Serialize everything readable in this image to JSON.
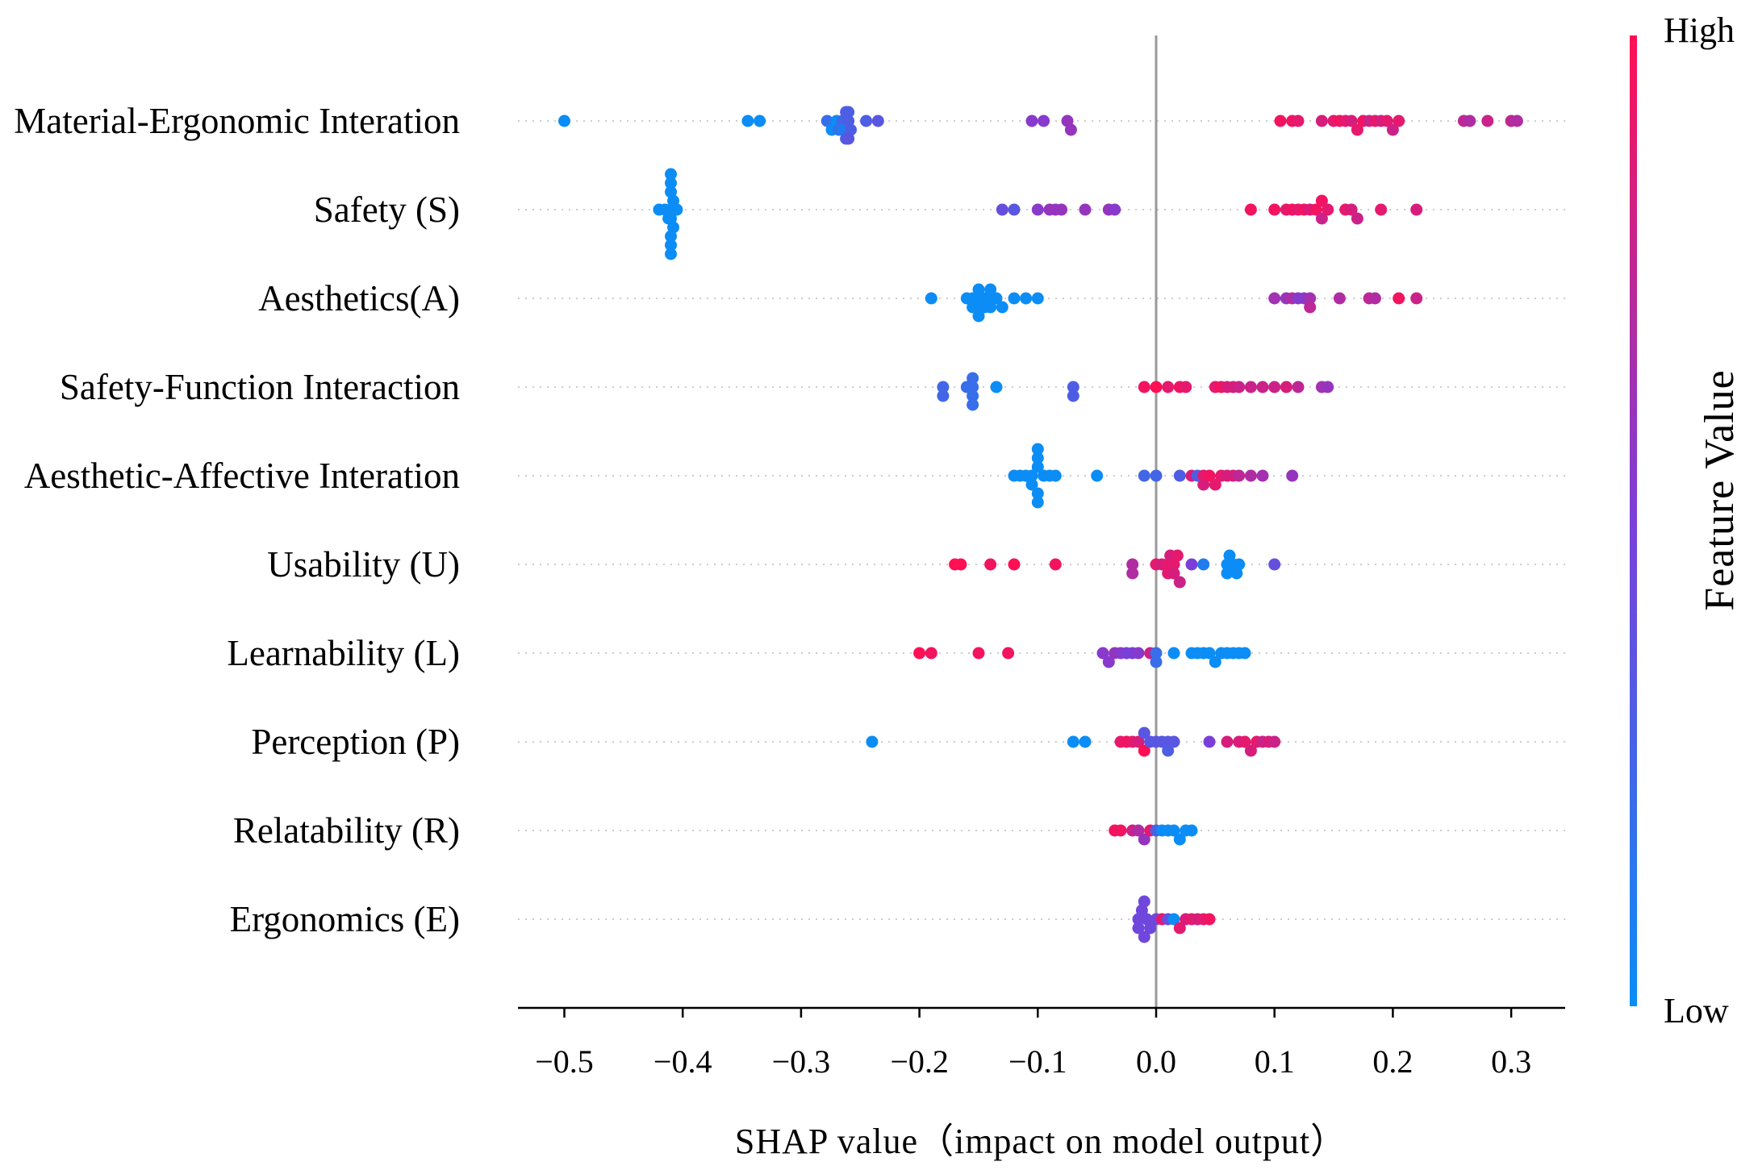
{
  "chart_data": {
    "type": "scatter",
    "subtype": "shap_beeswarm",
    "title": "",
    "xlabel": "SHAP value（impact on model output）",
    "xlim": [
      -0.55,
      0.34
    ],
    "xticks": [
      -0.5,
      -0.4,
      -0.3,
      -0.2,
      -0.1,
      0.0,
      0.1,
      0.2,
      0.3
    ],
    "xtick_labels": [
      "−0.5",
      "−0.4",
      "−0.3",
      "−0.2",
      "−0.1",
      "0.0",
      "0.1",
      "0.2",
      "0.3"
    ],
    "colorbar": {
      "label": "Feature Value",
      "high_label": "High",
      "low_label": "Low"
    },
    "colors": {
      "low": "#0b8df5",
      "mid": "#7b3fd9",
      "high": "#ff0f53",
      "axis": "#000000",
      "zero_line": "#9a9a9a",
      "row_guide": "#cccccc"
    },
    "features": [
      {
        "name": "Material-Ergonomic Interation",
        "points": [
          [
            -0.5,
            0.0
          ],
          [
            -0.345,
            0.0
          ],
          [
            -0.335,
            0.0
          ],
          [
            -0.278,
            0.2
          ],
          [
            -0.274,
            0.0
          ],
          [
            -0.27,
            0.0
          ],
          [
            -0.268,
            0.2
          ],
          [
            -0.265,
            0.25
          ],
          [
            -0.265,
            0.1
          ],
          [
            -0.262,
            0.3
          ],
          [
            -0.26,
            0.3
          ],
          [
            -0.258,
            0.3
          ],
          [
            -0.262,
            0.3
          ],
          [
            -0.26,
            0.3
          ],
          [
            -0.26,
            0.35
          ],
          [
            -0.245,
            0.3
          ],
          [
            -0.235,
            0.35
          ],
          [
            -0.105,
            0.55
          ],
          [
            -0.095,
            0.55
          ],
          [
            -0.075,
            0.6
          ],
          [
            -0.072,
            0.6
          ],
          [
            0.105,
            0.95
          ],
          [
            0.115,
            0.95
          ],
          [
            0.12,
            0.9
          ],
          [
            0.14,
            0.85
          ],
          [
            0.15,
            0.9
          ],
          [
            0.155,
            0.95
          ],
          [
            0.16,
            0.9
          ],
          [
            0.165,
            0.85
          ],
          [
            0.17,
            0.9
          ],
          [
            0.175,
            0.95
          ],
          [
            0.18,
            0.8
          ],
          [
            0.185,
            0.9
          ],
          [
            0.19,
            0.85
          ],
          [
            0.195,
            0.9
          ],
          [
            0.2,
            0.8
          ],
          [
            0.205,
            0.9
          ],
          [
            0.26,
            0.75
          ],
          [
            0.265,
            0.7
          ],
          [
            0.28,
            0.8
          ],
          [
            0.3,
            0.75
          ],
          [
            0.305,
            0.7
          ]
        ]
      },
      {
        "name": "Safety (S)",
        "points": [
          [
            -0.42,
            0.0
          ],
          [
            -0.415,
            0.0
          ],
          [
            -0.412,
            0.0
          ],
          [
            -0.41,
            0.0
          ],
          [
            -0.41,
            0.0
          ],
          [
            -0.408,
            0.0
          ],
          [
            -0.408,
            0.0
          ],
          [
            -0.41,
            0.0
          ],
          [
            -0.41,
            0.0
          ],
          [
            -0.41,
            0.0
          ],
          [
            -0.41,
            0.0
          ],
          [
            -0.41,
            0.0
          ],
          [
            -0.41,
            0.0
          ],
          [
            -0.405,
            0.0
          ],
          [
            -0.13,
            0.4
          ],
          [
            -0.12,
            0.35
          ],
          [
            -0.1,
            0.55
          ],
          [
            -0.09,
            0.6
          ],
          [
            -0.085,
            0.6
          ],
          [
            -0.08,
            0.6
          ],
          [
            -0.06,
            0.6
          ],
          [
            -0.04,
            0.6
          ],
          [
            -0.035,
            0.55
          ],
          [
            0.08,
            0.95
          ],
          [
            0.1,
            0.95
          ],
          [
            0.11,
            0.9
          ],
          [
            0.115,
            0.95
          ],
          [
            0.12,
            0.9
          ],
          [
            0.125,
            0.95
          ],
          [
            0.13,
            0.85
          ],
          [
            0.135,
            0.95
          ],
          [
            0.14,
            0.8
          ],
          [
            0.14,
            0.95
          ],
          [
            0.145,
            0.9
          ],
          [
            0.16,
            0.9
          ],
          [
            0.165,
            0.85
          ],
          [
            0.17,
            0.8
          ],
          [
            0.19,
            0.9
          ],
          [
            0.22,
            0.85
          ]
        ]
      },
      {
        "name": "Aesthetics(A)",
        "points": [
          [
            -0.19,
            0.0
          ],
          [
            -0.16,
            0.0
          ],
          [
            -0.155,
            0.0
          ],
          [
            -0.155,
            0.0
          ],
          [
            -0.15,
            0.0
          ],
          [
            -0.15,
            0.0
          ],
          [
            -0.15,
            0.0
          ],
          [
            -0.15,
            0.0
          ],
          [
            -0.145,
            0.0
          ],
          [
            -0.145,
            0.0
          ],
          [
            -0.14,
            0.0
          ],
          [
            -0.14,
            0.0
          ],
          [
            -0.14,
            0.0
          ],
          [
            -0.135,
            0.0
          ],
          [
            -0.13,
            0.0
          ],
          [
            -0.12,
            0.0
          ],
          [
            -0.11,
            0.0
          ],
          [
            -0.1,
            0.0
          ],
          [
            0.1,
            0.65
          ],
          [
            0.11,
            0.6
          ],
          [
            0.115,
            0.7
          ],
          [
            0.12,
            0.55
          ],
          [
            0.125,
            0.55
          ],
          [
            0.13,
            0.65
          ],
          [
            0.13,
            0.75
          ],
          [
            0.155,
            0.7
          ],
          [
            0.18,
            0.75
          ],
          [
            0.185,
            0.7
          ],
          [
            0.205,
            0.95
          ],
          [
            0.22,
            0.8
          ]
        ]
      },
      {
        "name": "Safety-Function Interaction",
        "points": [
          [
            -0.18,
            0.25
          ],
          [
            -0.18,
            0.25
          ],
          [
            -0.16,
            0.2
          ],
          [
            -0.155,
            0.2
          ],
          [
            -0.155,
            0.2
          ],
          [
            -0.155,
            0.2
          ],
          [
            -0.155,
            0.2
          ],
          [
            -0.135,
            0.0
          ],
          [
            -0.07,
            0.3
          ],
          [
            -0.07,
            0.3
          ],
          [
            -0.01,
            0.95
          ],
          [
            0.0,
            1.0
          ],
          [
            0.01,
            0.9
          ],
          [
            0.02,
            0.95
          ],
          [
            0.025,
            0.9
          ],
          [
            0.05,
            0.9
          ],
          [
            0.055,
            0.95
          ],
          [
            0.06,
            0.85
          ],
          [
            0.065,
            0.85
          ],
          [
            0.07,
            0.8
          ],
          [
            0.08,
            0.8
          ],
          [
            0.09,
            0.8
          ],
          [
            0.1,
            0.8
          ],
          [
            0.11,
            0.85
          ],
          [
            0.12,
            0.75
          ],
          [
            0.14,
            0.65
          ],
          [
            0.145,
            0.6
          ]
        ]
      },
      {
        "name": "Aesthetic-Affective Interation",
        "points": [
          [
            -0.12,
            0.0
          ],
          [
            -0.115,
            0.0
          ],
          [
            -0.11,
            0.0
          ],
          [
            -0.105,
            0.0
          ],
          [
            -0.105,
            0.0
          ],
          [
            -0.1,
            0.0
          ],
          [
            -0.1,
            0.0
          ],
          [
            -0.1,
            0.0
          ],
          [
            -0.1,
            0.0
          ],
          [
            -0.1,
            0.0
          ],
          [
            -0.095,
            0.0
          ],
          [
            -0.09,
            0.0
          ],
          [
            -0.085,
            0.0
          ],
          [
            -0.05,
            0.0
          ],
          [
            -0.01,
            0.25
          ],
          [
            0.0,
            0.25
          ],
          [
            0.02,
            0.3
          ],
          [
            0.03,
            0.85
          ],
          [
            0.035,
            0.3
          ],
          [
            0.04,
            0.9
          ],
          [
            0.04,
            0.85
          ],
          [
            0.045,
            0.95
          ],
          [
            0.05,
            0.9
          ],
          [
            0.055,
            0.9
          ],
          [
            0.06,
            0.85
          ],
          [
            0.065,
            0.85
          ],
          [
            0.07,
            0.75
          ],
          [
            0.08,
            0.7
          ],
          [
            0.09,
            0.65
          ],
          [
            0.115,
            0.6
          ]
        ]
      },
      {
        "name": "Usability (U)",
        "points": [
          [
            -0.17,
            1.0
          ],
          [
            -0.165,
            1.0
          ],
          [
            -0.14,
            0.95
          ],
          [
            -0.12,
            1.0
          ],
          [
            -0.085,
            0.95
          ],
          [
            -0.02,
            0.7
          ],
          [
            -0.02,
            0.7
          ],
          [
            0.0,
            0.9
          ],
          [
            0.005,
            0.85
          ],
          [
            0.01,
            0.9
          ],
          [
            0.01,
            0.9
          ],
          [
            0.012,
            0.85
          ],
          [
            0.015,
            0.9
          ],
          [
            0.015,
            0.85
          ],
          [
            0.018,
            0.9
          ],
          [
            0.02,
            0.8
          ],
          [
            0.03,
            0.5
          ],
          [
            0.04,
            0.1
          ],
          [
            0.06,
            0.0
          ],
          [
            0.06,
            0.0
          ],
          [
            0.062,
            0.0
          ],
          [
            0.065,
            0.0
          ],
          [
            0.068,
            0.0
          ],
          [
            0.07,
            0.0
          ],
          [
            0.1,
            0.4
          ]
        ]
      },
      {
        "name": "Learnability (L)",
        "points": [
          [
            -0.2,
            1.0
          ],
          [
            -0.19,
            0.95
          ],
          [
            -0.15,
            0.95
          ],
          [
            -0.125,
            0.95
          ],
          [
            -0.045,
            0.55
          ],
          [
            -0.04,
            0.55
          ],
          [
            -0.035,
            0.6
          ],
          [
            -0.03,
            0.55
          ],
          [
            -0.025,
            0.5
          ],
          [
            -0.02,
            0.5
          ],
          [
            -0.015,
            0.55
          ],
          [
            -0.005,
            0.8
          ],
          [
            0.0,
            0.2
          ],
          [
            0.0,
            0.2
          ],
          [
            0.015,
            0.0
          ],
          [
            0.03,
            0.0
          ],
          [
            0.035,
            0.0
          ],
          [
            0.04,
            0.0
          ],
          [
            0.045,
            0.0
          ],
          [
            0.05,
            0.0
          ],
          [
            0.055,
            0.0
          ],
          [
            0.06,
            0.0
          ],
          [
            0.065,
            0.0
          ],
          [
            0.07,
            0.0
          ],
          [
            0.075,
            0.0
          ]
        ]
      },
      {
        "name": "Perception (P)",
        "points": [
          [
            -0.24,
            0.0
          ],
          [
            -0.07,
            0.0
          ],
          [
            -0.06,
            0.0
          ],
          [
            -0.03,
            0.9
          ],
          [
            -0.025,
            0.95
          ],
          [
            -0.02,
            0.9
          ],
          [
            -0.015,
            0.85
          ],
          [
            -0.01,
            1.0
          ],
          [
            -0.01,
            0.35
          ],
          [
            -0.005,
            0.35
          ],
          [
            0.0,
            0.35
          ],
          [
            0.005,
            0.35
          ],
          [
            0.01,
            0.35
          ],
          [
            0.01,
            0.3
          ],
          [
            0.015,
            0.35
          ],
          [
            0.045,
            0.5
          ],
          [
            0.06,
            0.85
          ],
          [
            0.07,
            0.85
          ],
          [
            0.075,
            0.9
          ],
          [
            0.08,
            0.85
          ],
          [
            0.085,
            0.9
          ],
          [
            0.09,
            0.8
          ],
          [
            0.095,
            0.85
          ],
          [
            0.1,
            0.8
          ]
        ]
      },
      {
        "name": "Relatability (R)",
        "points": [
          [
            -0.035,
            0.95
          ],
          [
            -0.03,
            0.95
          ],
          [
            -0.02,
            0.8
          ],
          [
            -0.015,
            0.7
          ],
          [
            -0.01,
            0.6
          ],
          [
            -0.005,
            0.9
          ],
          [
            0.0,
            0.3
          ],
          [
            0.005,
            0.0
          ],
          [
            0.01,
            0.0
          ],
          [
            0.015,
            0.0
          ],
          [
            0.02,
            0.0
          ],
          [
            0.025,
            0.0
          ],
          [
            0.03,
            0.0
          ]
        ]
      },
      {
        "name": "Ergonomics (E)",
        "points": [
          [
            -0.015,
            0.45
          ],
          [
            -0.015,
            0.45
          ],
          [
            -0.012,
            0.45
          ],
          [
            -0.01,
            0.45
          ],
          [
            -0.01,
            0.45
          ],
          [
            -0.008,
            0.45
          ],
          [
            -0.005,
            0.45
          ],
          [
            0.0,
            0.45
          ],
          [
            0.005,
            0.9
          ],
          [
            0.01,
            0.4
          ],
          [
            0.015,
            0.0
          ],
          [
            0.02,
            0.9
          ],
          [
            0.025,
            0.85
          ],
          [
            0.03,
            0.9
          ],
          [
            0.035,
            0.85
          ],
          [
            0.04,
            0.9
          ],
          [
            0.045,
            0.95
          ]
        ]
      }
    ]
  }
}
